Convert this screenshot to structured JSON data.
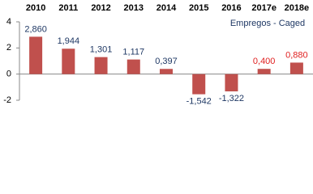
{
  "chart_data": {
    "type": "bar",
    "annotation": "Empregos - Caged",
    "categories": [
      "2010",
      "2011",
      "2012",
      "2013",
      "2014",
      "2015",
      "2016",
      "2017e",
      "2018e"
    ],
    "values": [
      2.86,
      1.944,
      1.301,
      1.117,
      0.397,
      -1.542,
      -1.322,
      0.4,
      0.88
    ],
    "value_labels": [
      "2,860",
      "1,944",
      "1,301",
      "1,117",
      "0,397",
      "-1,542",
      "-1,322",
      "0,400",
      "0,880"
    ],
    "value_label_colors": [
      "#1f3864",
      "#1f3864",
      "#1f3864",
      "#1f3864",
      "#1f3864",
      "#1f3864",
      "#1f3864",
      "#e02020",
      "#e02020"
    ],
    "color": "#c0504d",
    "ylim": [
      -2,
      4
    ],
    "yticks": [
      -2,
      0,
      2,
      4
    ]
  }
}
